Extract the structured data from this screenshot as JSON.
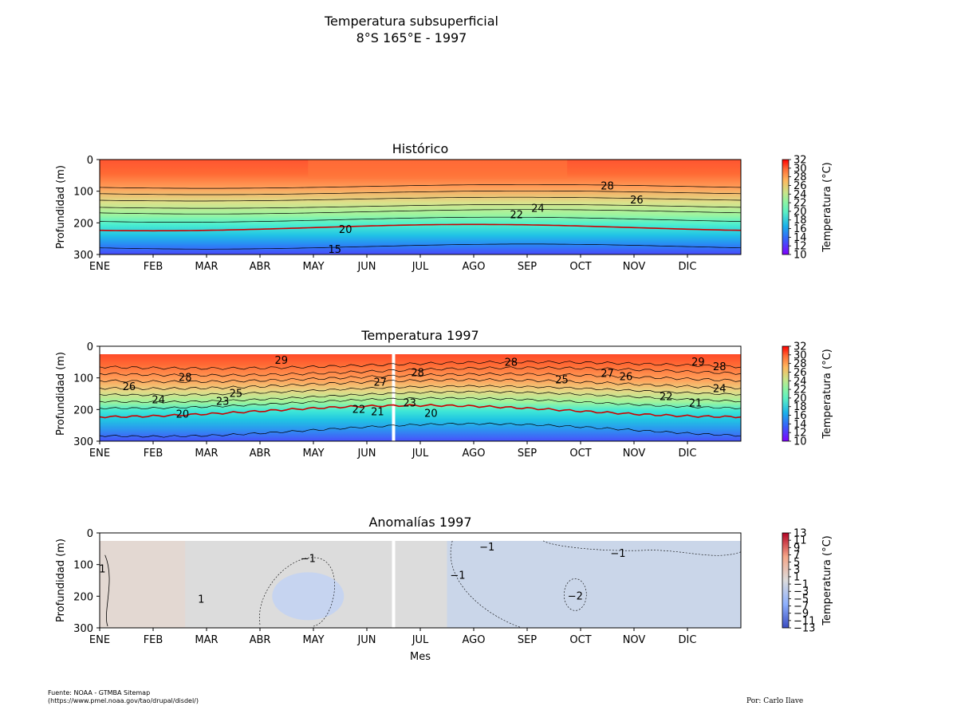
{
  "figure": {
    "title": "Temperatura subsuperficial",
    "subtitle": "8°S 165°E - 1997",
    "source_line1": "Fuente: NOAA - GTMBA Sitemap",
    "source_line2": "(https://www.pmel.noaa.gov/tao/drupal/disdel/)",
    "author": "Por: Carlo Ilave"
  },
  "chart_data": [
    {
      "type": "heatmap",
      "title": "Histórico",
      "xlabel": "",
      "ylabel": "Profundidad (m)",
      "x_ticks": [
        "ENE",
        "FEB",
        "MAR",
        "ABR",
        "MAY",
        "JUN",
        "JUL",
        "AGO",
        "SEP",
        "OCT",
        "NOV",
        "DIC"
      ],
      "y_ticks": [
        0,
        100,
        200,
        300
      ],
      "ylim": [
        300,
        0
      ],
      "colorbar_label": "Temperatura (°C)",
      "colorbar_ticks": [
        32,
        30,
        28,
        26,
        24,
        22,
        20,
        18,
        16,
        14,
        12,
        10
      ],
      "colorbar_range": [
        10,
        32
      ],
      "colormap": "rainbow",
      "highlight_isotherm": 20,
      "highlight_color": "#cc0000",
      "contour_labels": [
        {
          "text": "28",
          "month": 9.5,
          "depth": 85
        },
        {
          "text": "26",
          "month": 10.05,
          "depth": 128
        },
        {
          "text": "24",
          "month": 8.2,
          "depth": 155
        },
        {
          "text": "22",
          "month": 7.8,
          "depth": 175
        },
        {
          "text": "20",
          "month": 4.6,
          "depth": 222
        },
        {
          "text": "15",
          "month": 4.4,
          "depth": 285
        }
      ]
    },
    {
      "type": "heatmap",
      "title": "Temperatura 1997",
      "xlabel": "",
      "ylabel": "Profundidad (m)",
      "x_ticks": [
        "ENE",
        "FEB",
        "MAR",
        "ABR",
        "MAY",
        "JUN",
        "JUL",
        "AGO",
        "SEP",
        "OCT",
        "NOV",
        "DIC"
      ],
      "y_ticks": [
        0,
        100,
        200,
        300
      ],
      "ylim": [
        300,
        0
      ],
      "colorbar_label": "Temperatura (°C)",
      "colorbar_ticks": [
        32,
        30,
        28,
        26,
        24,
        22,
        20,
        18,
        16,
        14,
        12,
        10
      ],
      "colorbar_range": [
        10,
        32
      ],
      "colormap": "rainbow",
      "data_gap_month": 5.5,
      "contour_labels": [
        {
          "text": "29",
          "month": 3.4,
          "depth": 45
        },
        {
          "text": "28",
          "month": 1.6,
          "depth": 100
        },
        {
          "text": "26",
          "month": 0.55,
          "depth": 128
        },
        {
          "text": "24",
          "month": 1.1,
          "depth": 170
        },
        {
          "text": "23",
          "month": 2.3,
          "depth": 175
        },
        {
          "text": "25",
          "month": 2.55,
          "depth": 150
        },
        {
          "text": "20",
          "month": 1.55,
          "depth": 215
        },
        {
          "text": "22",
          "month": 4.85,
          "depth": 200
        },
        {
          "text": "21",
          "month": 5.2,
          "depth": 208
        },
        {
          "text": "27",
          "month": 5.25,
          "depth": 115
        },
        {
          "text": "28",
          "month": 5.95,
          "depth": 85
        },
        {
          "text": "23",
          "month": 5.8,
          "depth": 180
        },
        {
          "text": "20",
          "month": 6.2,
          "depth": 213
        },
        {
          "text": "28",
          "month": 7.7,
          "depth": 52
        },
        {
          "text": "25",
          "month": 8.65,
          "depth": 107
        },
        {
          "text": "27",
          "month": 9.5,
          "depth": 87
        },
        {
          "text": "26",
          "month": 9.85,
          "depth": 97
        },
        {
          "text": "22",
          "month": 10.6,
          "depth": 160
        },
        {
          "text": "21",
          "month": 11.15,
          "depth": 180
        },
        {
          "text": "29",
          "month": 11.2,
          "depth": 50
        },
        {
          "text": "28",
          "month": 11.6,
          "depth": 65
        },
        {
          "text": "24",
          "month": 11.6,
          "depth": 135
        }
      ]
    },
    {
      "type": "heatmap",
      "title": "Anomalías 1997",
      "xlabel": "Mes",
      "ylabel": "Profundidad (m)",
      "x_ticks": [
        "ENE",
        "FEB",
        "MAR",
        "ABR",
        "MAY",
        "JUN",
        "JUL",
        "AGO",
        "SEP",
        "OCT",
        "NOV",
        "DIC"
      ],
      "y_ticks": [
        0,
        100,
        200,
        300
      ],
      "ylim": [
        300,
        0
      ],
      "colorbar_label": "Temperatura (°C)",
      "colorbar_ticks": [
        "13",
        "11",
        "9",
        "7",
        "5",
        "3",
        "1",
        "−1",
        "−3",
        "−5",
        "−7",
        "−9",
        "−11",
        "−13"
      ],
      "colorbar_range": [
        -13,
        13
      ],
      "colormap": "coolwarm",
      "data_gap_month": 5.5,
      "contour_labels": [
        {
          "text": "1",
          "month": 0.05,
          "depth": 115
        },
        {
          "text": "1",
          "month": 1.9,
          "depth": 210
        },
        {
          "text": "−1",
          "month": 3.9,
          "depth": 82
        },
        {
          "text": "−1",
          "month": 6.7,
          "depth": 135
        },
        {
          "text": "−1",
          "month": 7.25,
          "depth": 45
        },
        {
          "text": "−2",
          "month": 8.9,
          "depth": 200
        },
        {
          "text": "−1",
          "month": 9.7,
          "depth": 65
        }
      ]
    }
  ]
}
